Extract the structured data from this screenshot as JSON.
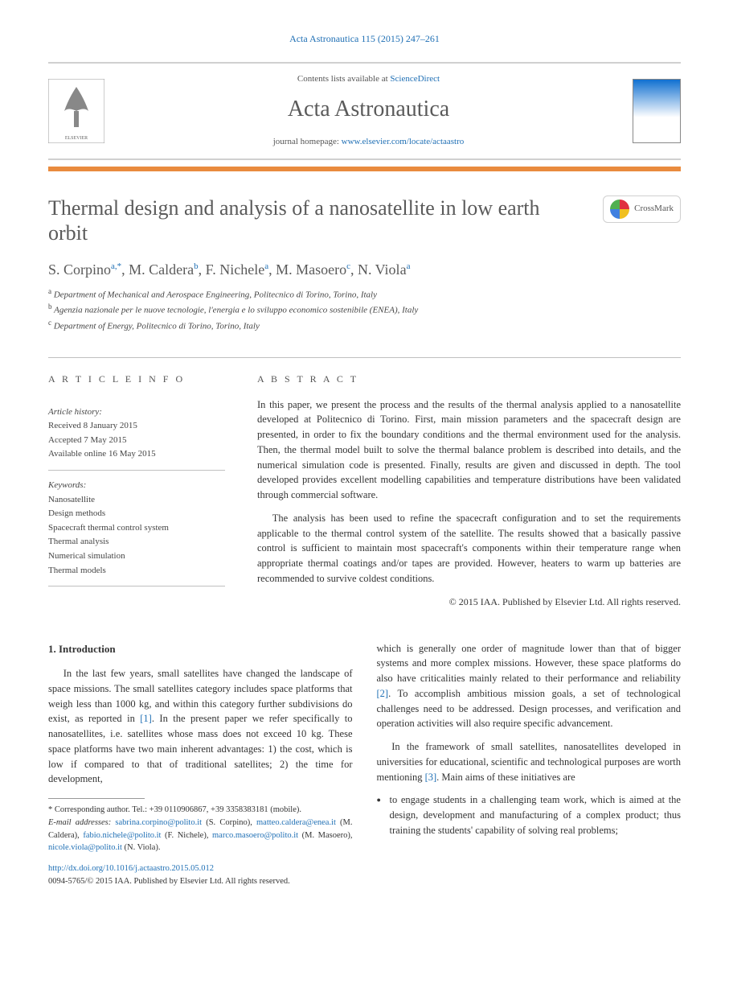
{
  "citation": "Acta Astronautica 115 (2015) 247–261",
  "header": {
    "contents_prefix": "Contents lists available at ",
    "contents_link": "ScienceDirect",
    "journal": "Acta Astronautica",
    "homepage_prefix": "journal homepage: ",
    "homepage_url": "www.elsevier.com/locate/actaastro"
  },
  "orange_divider_color": "#e98b3e",
  "title": "Thermal design and analysis of a nanosatellite in low earth orbit",
  "crossmark_label": "CrossMark",
  "authors_html": "S. Corpino|a,*|, M. Caldera|b|, F. Nichele|a|, M. Masoero|c|, N. Viola|a|",
  "affiliations": [
    {
      "sup": "a",
      "text": "Department of Mechanical and Aerospace Engineering, Politecnico di Torino, Torino, Italy"
    },
    {
      "sup": "b",
      "text": "Agenzia nazionale per le nuove tecnologie, l'energia e lo sviluppo economico sostenibile (ENEA), Italy"
    },
    {
      "sup": "c",
      "text": "Department of Energy, Politecnico di Torino, Torino, Italy"
    }
  ],
  "info": {
    "label_left": "A R T I C L E  I N F O",
    "label_right": "A B S T R A C T",
    "history_label": "Article history:",
    "history": [
      "Received 8 January 2015",
      "Accepted 7 May 2015",
      "Available online 16 May 2015"
    ],
    "keywords_label": "Keywords:",
    "keywords": [
      "Nanosatellite",
      "Design methods",
      "Spacecraft thermal control system",
      "Thermal analysis",
      "Numerical simulation",
      "Thermal models"
    ]
  },
  "abstract": {
    "p1": "In this paper, we present the process and the results of the thermal analysis applied to a nanosatellite developed at Politecnico di Torino. First, main mission parameters and the spacecraft design are presented, in order to fix the boundary conditions and the thermal environment used for the analysis. Then, the thermal model built to solve the thermal balance problem is described into details, and the numerical simulation code is presented. Finally, results are given and discussed in depth. The tool developed provides excellent modelling capabilities and temperature distributions have been validated through commercial software.",
    "p2": "The analysis has been used to refine the spacecraft configuration and to set the requirements applicable to the thermal control system of the satellite. The results showed that a basically passive control is sufficient to maintain most spacecraft's components within their temperature range when appropriate thermal coatings and/or tapes are provided. However, heaters to warm up batteries are recommended to survive coldest conditions.",
    "copyright": "© 2015 IAA. Published by Elsevier Ltd. All rights reserved."
  },
  "body": {
    "section_num": "1.",
    "section_title": "Introduction",
    "left_p1": "In the last few years, small satellites have changed the landscape of space missions. The small satellites category includes space platforms that weigh less than 1000 kg, and within this category further subdivisions do exist, as reported in [1]. In the present paper we refer specifically to nanosatellites, i.e. satellites whose mass does not exceed 10 kg. These space platforms have two main inherent advantages: 1) the cost, which is low if compared to that of traditional satellites; 2) the time for development,",
    "right_p1": "which is generally one order of magnitude lower than that of bigger systems and more complex missions. However, these space platforms do also have criticalities mainly related to their performance and reliability [2]. To accomplish ambitious mission goals, a set of technological challenges need to be addressed. Design processes, and verification and operation activities will also require specific advancement.",
    "right_p2": "In the framework of small satellites, nanosatellites developed in universities for educational, scientific and technological purposes are worth mentioning [3]. Main aims of these initiatives are",
    "bullets": [
      "to engage students in a challenging team work, which is aimed at the design, development and manufacturing of a complex product; thus training the students' capability of solving real problems;"
    ]
  },
  "footnotes": {
    "corr": "* Corresponding author. Tel.: +39 0110906867, +39 3358383181 (mobile).",
    "emails_label": "E-mail addresses:",
    "emails": [
      {
        "addr": "sabrina.corpino@polito.it",
        "name": "(S. Corpino),"
      },
      {
        "addr": "matteo.caldera@enea.it",
        "name": "(M. Caldera),"
      },
      {
        "addr": "fabio.nichele@polito.it",
        "name": "(F. Nichele),"
      },
      {
        "addr": "marco.masoero@polito.it",
        "name": "(M. Masoero),"
      },
      {
        "addr": "nicole.viola@polito.it",
        "name": "(N. Viola)."
      }
    ]
  },
  "doi": {
    "url": "http://dx.doi.org/10.1016/j.actaastro.2015.05.012",
    "issn": "0094-5765/© 2015 IAA. Published by Elsevier Ltd. All rights reserved."
  },
  "link_color": "#2070b5"
}
